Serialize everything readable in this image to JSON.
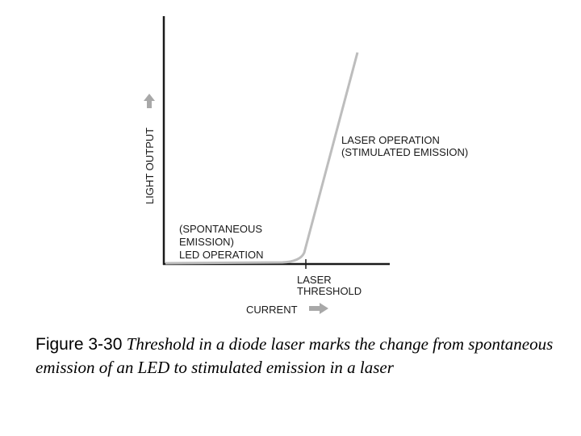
{
  "diagram": {
    "y_axis_label": "LIGHT OUTPUT",
    "x_axis_label": "CURRENT",
    "led_region_label": [
      "(SPONTANEOUS",
      "EMISSION)",
      "LED OPERATION"
    ],
    "laser_region_label": [
      "LASER OPERATION",
      "(STIMULATED EMISSION)"
    ],
    "threshold_label": [
      "LASER",
      "THRESHOLD"
    ],
    "colors": {
      "axis": "#1a1a1a",
      "curve": "#bdbdbd",
      "arrows": "#a8a8a8",
      "text": "#1a1a1a"
    },
    "icons": {
      "y_arrow": "arrow-up-icon",
      "x_arrow": "arrow-right-icon"
    }
  },
  "caption": {
    "figure_number": "Figure 3-30",
    "text": "Threshold in a diode laser marks the change from spontaneous emission of an LED to stimulated emission in a laser"
  }
}
